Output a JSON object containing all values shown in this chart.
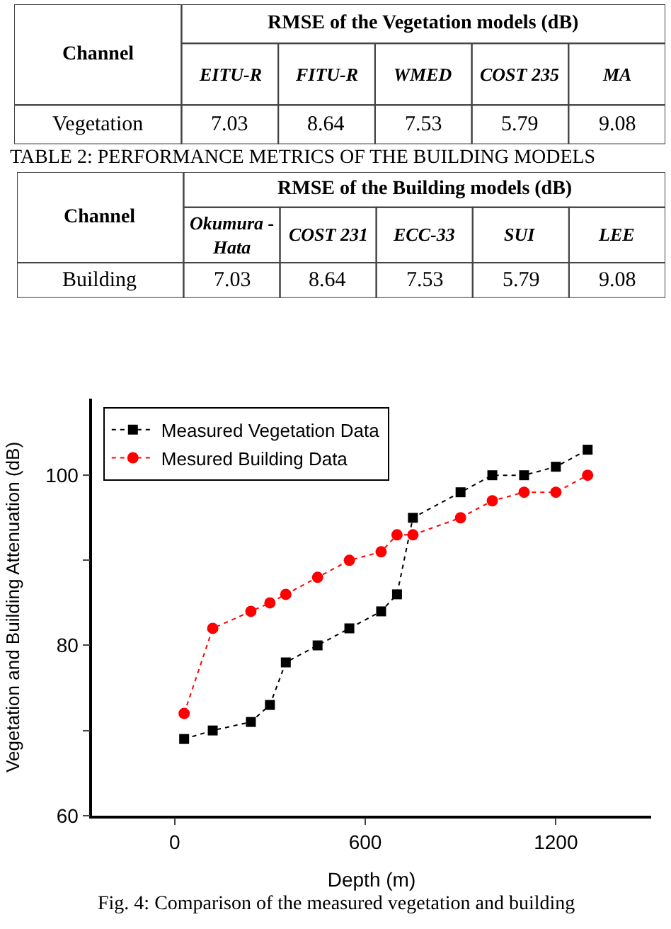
{
  "chart_data": [
    {
      "type": "heatmap",
      "title": "RMSE of the Vegetation models (dB)",
      "ylabel": "Channel",
      "categories": [
        "EITU-R",
        "FITU-R",
        "WMED",
        "COST 235",
        "MA"
      ],
      "y_categories": [
        "Vegetation"
      ],
      "cells": [
        [
          7.03,
          8.64,
          7.53,
          5.79,
          9.08
        ]
      ],
      "data_labels": true
    },
    {
      "type": "heatmap",
      "title": "RMSE of the Building models (dB)",
      "ylabel": "Channel",
      "annotations": [
        "TABLE 2: PERFORMANCE METRICS OF THE BUILDING MODELS"
      ],
      "categories": [
        "Okumura - Hata",
        "COST 231",
        "ECC-33",
        "SUI",
        "LEE"
      ],
      "y_categories": [
        "Building"
      ],
      "cells": [
        [
          7.03,
          8.64,
          7.53,
          5.79,
          9.08
        ]
      ],
      "data_labels": true
    },
    {
      "type": "line",
      "xlabel": "Depth (m)",
      "ylabel": "Vegetation and Building Attenuation (dB)",
      "annotations": [
        "Fig. 4: Comparison of the measured vegetation and building"
      ],
      "x": [
        30,
        120,
        240,
        300,
        350,
        450,
        550,
        650,
        700,
        750,
        900,
        1000,
        1100,
        1200,
        1300
      ],
      "series": [
        {
          "name": "Measured Vegetation Data",
          "color": "#000000",
          "marker": "square",
          "values": [
            69,
            70,
            71,
            73,
            78,
            80,
            82,
            84,
            86,
            95,
            98,
            100,
            100,
            101,
            103
          ]
        },
        {
          "name": "Mesured Building Data",
          "color": "#ff0000",
          "marker": "circle",
          "values": [
            72,
            82,
            84,
            85,
            86,
            88,
            90,
            91,
            93,
            93,
            95,
            97,
            98,
            98,
            100
          ]
        }
      ],
      "xlim": [
        -260,
        1500
      ],
      "ylim": [
        60,
        109
      ],
      "xticks": [
        0,
        600,
        1200
      ],
      "yticks": [
        60,
        {
          "value": 70,
          "label": null
        },
        80,
        {
          "value": 90,
          "label": null
        },
        100
      ],
      "line_style": "dotted",
      "legend": "top left"
    }
  ]
}
